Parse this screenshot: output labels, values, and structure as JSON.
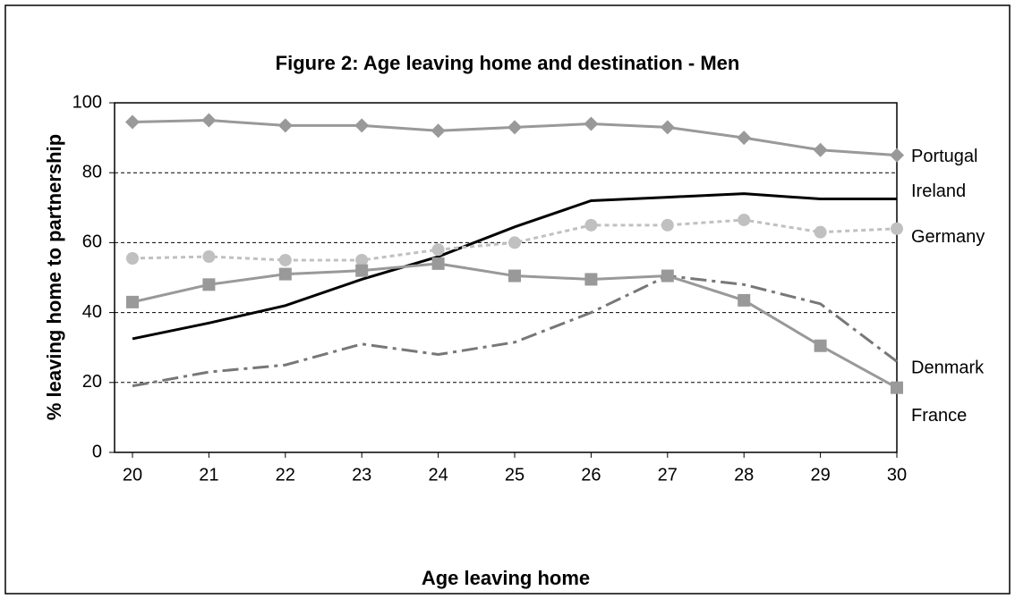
{
  "chart_data": {
    "type": "line",
    "title": "Figure 2: Age leaving home and destination - Men",
    "xlabel": "Age leaving home",
    "ylabel": "% leaving home to partnership",
    "x": [
      20,
      21,
      22,
      23,
      24,
      25,
      26,
      27,
      28,
      29,
      30
    ],
    "xlim": [
      20,
      30
    ],
    "xticks": [
      20,
      21,
      22,
      23,
      24,
      25,
      26,
      27,
      28,
      29,
      30
    ],
    "ylim": [
      0,
      100
    ],
    "yticks": [
      0,
      20,
      40,
      60,
      80,
      100
    ],
    "grid": true,
    "series": [
      {
        "name": "Portugal",
        "color": "#999999",
        "marker": "diamond",
        "dash": "solid",
        "values": [
          94.5,
          95,
          93.5,
          93.5,
          92,
          93,
          94,
          93,
          90,
          86.5,
          85
        ]
      },
      {
        "name": "Ireland",
        "color": "#000000",
        "marker": "none",
        "dash": "solid",
        "values": [
          32.5,
          37,
          42,
          49.5,
          56,
          64.5,
          72,
          73,
          74,
          72.5,
          72.5
        ]
      },
      {
        "name": "Germany",
        "color": "#c0c0c0",
        "marker": "circle",
        "dash": "dotted",
        "values": [
          55.5,
          56,
          55,
          55,
          58,
          60,
          65,
          65,
          66.5,
          63,
          64
        ]
      },
      {
        "name": "Denmark",
        "color": "#777777",
        "marker": "none",
        "dash": "dashdot",
        "values": [
          19,
          23,
          25,
          31,
          28,
          31.5,
          40,
          50.5,
          48,
          42.5,
          26
        ]
      },
      {
        "name": "France",
        "color": "#999999",
        "marker": "square",
        "dash": "solid",
        "values": [
          43,
          48,
          51,
          52,
          54,
          50.5,
          49.5,
          50.5,
          43.5,
          30.5,
          18.5
        ]
      }
    ]
  }
}
